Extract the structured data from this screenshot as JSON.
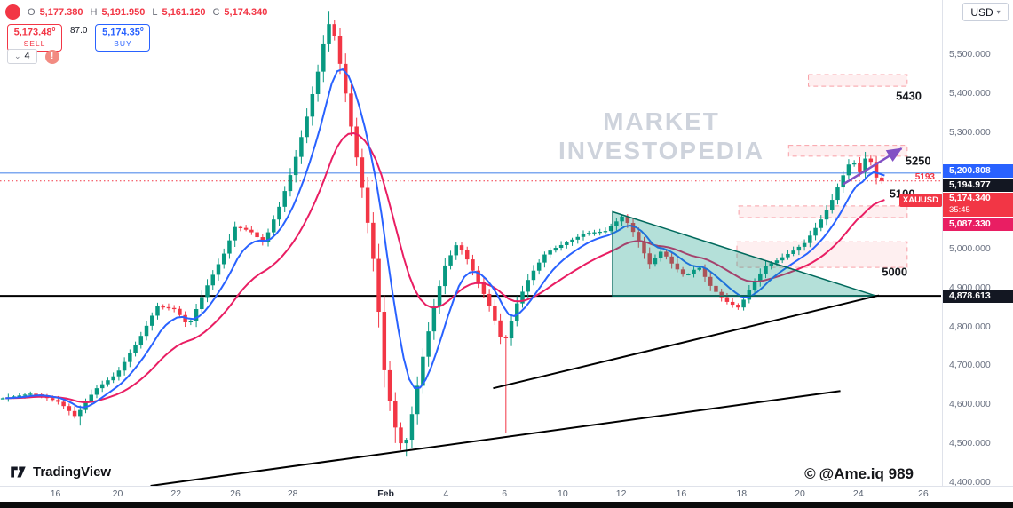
{
  "toolbar": {
    "ohlc": {
      "o_label": "O",
      "o_value": "5,177.380",
      "h_label": "H",
      "h_value": "5,191.950",
      "l_label": "L",
      "l_value": "5,161.120",
      "c_label": "C",
      "c_value": "5,174.340"
    },
    "sell_price": "5,173.48",
    "sell_sup": "0",
    "sell_label": "SELL",
    "spread": "87.0",
    "buy_price": "5,174.35",
    "buy_sup": "0",
    "buy_label": "BUY",
    "interval": "4",
    "alert": "!",
    "currency": "USD"
  },
  "watermark": {
    "line1": "MARKET",
    "line2": "INVESTOPEDIA"
  },
  "credit": {
    "icon": "©",
    "text": "@Ame.iq 989"
  },
  "logo": {
    "text": "TradingView"
  },
  "colors": {
    "up": "#089981",
    "down": "#f23645",
    "ma_fast": "#2962ff",
    "ma_slow": "#e91e63",
    "zone_fill": "rgba(242,54,69,0.08)",
    "zone_border": "rgba(242,54,69,0.45)",
    "triangle_fill": "rgba(8,153,129,0.30)",
    "triangle_edge": "#00695c",
    "trendline": "#000000",
    "support": "#000000",
    "alert_line": "#7faaf0",
    "last_line": "#f23645",
    "arrow": "#8250c4",
    "label": "#16181d"
  },
  "price_axis": {
    "ticks": [
      {
        "label": "5,500.000",
        "price": 5500
      },
      {
        "label": "5,400.000",
        "price": 5400
      },
      {
        "label": "5,300.000",
        "price": 5300
      },
      {
        "label": "5,100.000",
        "price": 5100
      },
      {
        "label": "5,000.000",
        "price": 5000
      },
      {
        "label": "4,900.000",
        "price": 4900
      },
      {
        "label": "4,800.000",
        "price": 4800
      },
      {
        "label": "4,700.000",
        "price": 4700
      },
      {
        "label": "4,600.000",
        "price": 4600
      },
      {
        "label": "4,500.000",
        "price": 4500
      },
      {
        "label": "4,400.000",
        "price": 4400
      }
    ],
    "badges": [
      {
        "name": "ma-fast-value-badge",
        "label": "5,200.808",
        "price": 5200.808,
        "bg": "#2962ff"
      },
      {
        "name": "alert-value-badge",
        "label": "5,194.977",
        "price": 5194.977,
        "bg": "#131722"
      },
      {
        "name": "last-price-badge",
        "label": "5,174.340",
        "price": 5174.34,
        "bg": "#f23645",
        "tag": "XAUUSD",
        "countdown": "35:45"
      },
      {
        "name": "ma-slow-value-badge",
        "label": "5,087.330",
        "price": 5087.33,
        "bg": "#e91e63"
      },
      {
        "name": "support-value-badge",
        "label": "4,878.613",
        "price": 4878.613,
        "bg": "#131722"
      }
    ],
    "edge_label": {
      "text": "5193",
      "price": 5181,
      "color": "#f23645"
    }
  },
  "time_axis": {
    "ticks": [
      {
        "label": "16",
        "t": 0.059
      },
      {
        "label": "20",
        "t": 0.125
      },
      {
        "label": "22",
        "t": 0.187
      },
      {
        "label": "26",
        "t": 0.25
      },
      {
        "label": "28",
        "t": 0.311
      },
      {
        "label": "Feb",
        "t": 0.41,
        "major": true
      },
      {
        "label": "4",
        "t": 0.474
      },
      {
        "label": "6",
        "t": 0.536
      },
      {
        "label": "10",
        "t": 0.598
      },
      {
        "label": "12",
        "t": 0.66
      },
      {
        "label": "16",
        "t": 0.724
      },
      {
        "label": "18",
        "t": 0.788
      },
      {
        "label": "20",
        "t": 0.85
      },
      {
        "label": "24",
        "t": 0.912
      },
      {
        "label": "26",
        "t": 0.981
      }
    ]
  },
  "chart_data": {
    "type": "candlestick",
    "symbol": "XAUUSD",
    "interval": "4h",
    "current_bar": {
      "open": 5177.38,
      "high": 5191.95,
      "low": 5161.12,
      "close": 5174.34
    },
    "y_range": {
      "min": 4390,
      "max": 5640
    },
    "bars": 160,
    "t_end": 0.94,
    "price_path": [
      [
        0.005,
        4615
      ],
      [
        0.038,
        4628
      ],
      [
        0.066,
        4605
      ],
      [
        0.083,
        4568
      ],
      [
        0.104,
        4638
      ],
      [
        0.127,
        4678
      ],
      [
        0.151,
        4768
      ],
      [
        0.17,
        4852
      ],
      [
        0.189,
        4845
      ],
      [
        0.203,
        4800
      ],
      [
        0.222,
        4900
      ],
      [
        0.241,
        4988
      ],
      [
        0.253,
        5058
      ],
      [
        0.269,
        5045
      ],
      [
        0.283,
        5015
      ],
      [
        0.3,
        5110
      ],
      [
        0.314,
        5208
      ],
      [
        0.328,
        5330
      ],
      [
        0.342,
        5468
      ],
      [
        0.351,
        5585
      ],
      [
        0.358,
        5552
      ],
      [
        0.368,
        5430
      ],
      [
        0.377,
        5300
      ],
      [
        0.389,
        5140
      ],
      [
        0.401,
        4950
      ],
      [
        0.412,
        4668
      ],
      [
        0.423,
        4540
      ],
      [
        0.432,
        4478
      ],
      [
        0.442,
        4590
      ],
      [
        0.453,
        4730
      ],
      [
        0.464,
        4850
      ],
      [
        0.476,
        4958
      ],
      [
        0.489,
        5015
      ],
      [
        0.5,
        4970
      ],
      [
        0.514,
        4900
      ],
      [
        0.526,
        4835
      ],
      [
        0.538,
        4750
      ],
      [
        0.552,
        4858
      ],
      [
        0.566,
        4930
      ],
      [
        0.583,
        4990
      ],
      [
        0.604,
        5015
      ],
      [
        0.625,
        5040
      ],
      [
        0.646,
        5045
      ],
      [
        0.665,
        5085
      ],
      [
        0.679,
        5030
      ],
      [
        0.693,
        4960
      ],
      [
        0.706,
        4995
      ],
      [
        0.719,
        4955
      ],
      [
        0.731,
        4928
      ],
      [
        0.745,
        4955
      ],
      [
        0.759,
        4900
      ],
      [
        0.774,
        4865
      ],
      [
        0.788,
        4848
      ],
      [
        0.802,
        4905
      ],
      [
        0.816,
        4955
      ],
      [
        0.83,
        4972
      ],
      [
        0.844,
        4992
      ],
      [
        0.858,
        5015
      ],
      [
        0.873,
        5065
      ],
      [
        0.887,
        5125
      ],
      [
        0.898,
        5185
      ],
      [
        0.908,
        5232
      ],
      [
        0.917,
        5195
      ],
      [
        0.925,
        5250
      ],
      [
        0.933,
        5185
      ],
      [
        0.94,
        5174.34
      ]
    ],
    "spikes": [
      {
        "t": 0.084,
        "price": 4545
      },
      {
        "t": 0.351,
        "price": 5612
      },
      {
        "t": 0.418,
        "price": 4500
      },
      {
        "t": 0.429,
        "price": 4465
      },
      {
        "t": 0.54,
        "price": 4525
      }
    ],
    "ma_fast": {
      "alpha": 0.26,
      "value": 5200.808
    },
    "ma_slow": {
      "alpha": 0.1,
      "value": 5087.33
    },
    "levels": {
      "support": {
        "price": 4878.613
      },
      "alert": {
        "price": 5194.977
      },
      "last": {
        "price": 5174.34
      }
    },
    "zones": [
      {
        "t1": 0.859,
        "t2": 0.964,
        "top": 5448,
        "bottom": 5418
      },
      {
        "t1": 0.838,
        "t2": 0.964,
        "top": 5266,
        "bottom": 5238
      },
      {
        "t1": 0.785,
        "t2": 0.964,
        "top": 5110,
        "bottom": 5080
      },
      {
        "t1": 0.783,
        "t2": 0.964,
        "top": 5018,
        "bottom": 4952
      }
    ],
    "trendlines": [
      {
        "x": [
          0.524,
          0.934
        ],
        "y": [
          4641,
          4880
        ]
      },
      {
        "x": [
          0.16,
          0.893
        ],
        "y": [
          4390,
          4634
        ]
      }
    ],
    "triangle": {
      "points": [
        [
          0.651,
          5095
        ],
        [
          0.931,
          4878.6
        ],
        [
          0.651,
          4878.6
        ]
      ]
    },
    "arrow": {
      "from": [
        0.896,
        5166
      ],
      "to": [
        0.958,
        5258
      ]
    },
    "level_labels": [
      {
        "text": "5430",
        "t": 0.952,
        "price": 5383
      },
      {
        "text": "5250",
        "t": 0.962,
        "price": 5216
      },
      {
        "text": "5100",
        "t": 0.945,
        "price": 5131
      },
      {
        "text": "5000",
        "t": 0.937,
        "price": 4930
      }
    ]
  }
}
